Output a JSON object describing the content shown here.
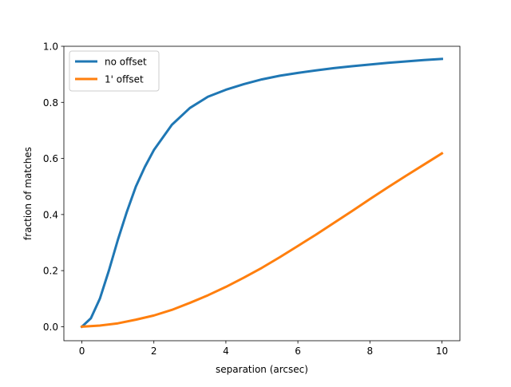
{
  "chart_data": {
    "type": "line",
    "title": "",
    "xlabel": "separation (arcsec)",
    "ylabel": "fraction of matches",
    "xlim": [
      -0.5,
      10.5
    ],
    "ylim": [
      -0.05,
      1.0
    ],
    "xticks": [
      0,
      2,
      4,
      6,
      8,
      10
    ],
    "xtick_labels": [
      "0",
      "2",
      "4",
      "6",
      "8",
      "10"
    ],
    "yticks": [
      0.0,
      0.2,
      0.4,
      0.6,
      0.8,
      1.0
    ],
    "ytick_labels": [
      "0.0",
      "0.2",
      "0.4",
      "0.6",
      "0.8",
      "1.0"
    ],
    "grid": false,
    "legend_position": "top-left",
    "series": [
      {
        "name": "no offset",
        "color": "#1f77b4",
        "x": [
          0,
          0.25,
          0.5,
          0.75,
          1.0,
          1.25,
          1.5,
          1.75,
          2.0,
          2.5,
          3.0,
          3.5,
          4.0,
          4.5,
          5.0,
          5.5,
          6.0,
          6.5,
          7.0,
          7.5,
          8.0,
          8.5,
          9.0,
          9.5,
          10.0
        ],
        "y": [
          0.0,
          0.03,
          0.1,
          0.2,
          0.31,
          0.41,
          0.5,
          0.57,
          0.63,
          0.72,
          0.78,
          0.82,
          0.845,
          0.865,
          0.882,
          0.895,
          0.905,
          0.914,
          0.922,
          0.929,
          0.935,
          0.941,
          0.946,
          0.951,
          0.955
        ]
      },
      {
        "name": "1' offset",
        "color": "#ff7f0e",
        "x": [
          0,
          0.5,
          1.0,
          1.5,
          2.0,
          2.5,
          3.0,
          3.5,
          4.0,
          4.5,
          5.0,
          5.5,
          6.0,
          6.5,
          7.0,
          7.5,
          8.0,
          8.5,
          9.0,
          9.5,
          10.0
        ],
        "y": [
          0.0,
          0.004,
          0.012,
          0.025,
          0.04,
          0.06,
          0.085,
          0.112,
          0.142,
          0.175,
          0.21,
          0.248,
          0.288,
          0.328,
          0.37,
          0.412,
          0.455,
          0.497,
          0.538,
          0.578,
          0.618
        ]
      }
    ]
  }
}
